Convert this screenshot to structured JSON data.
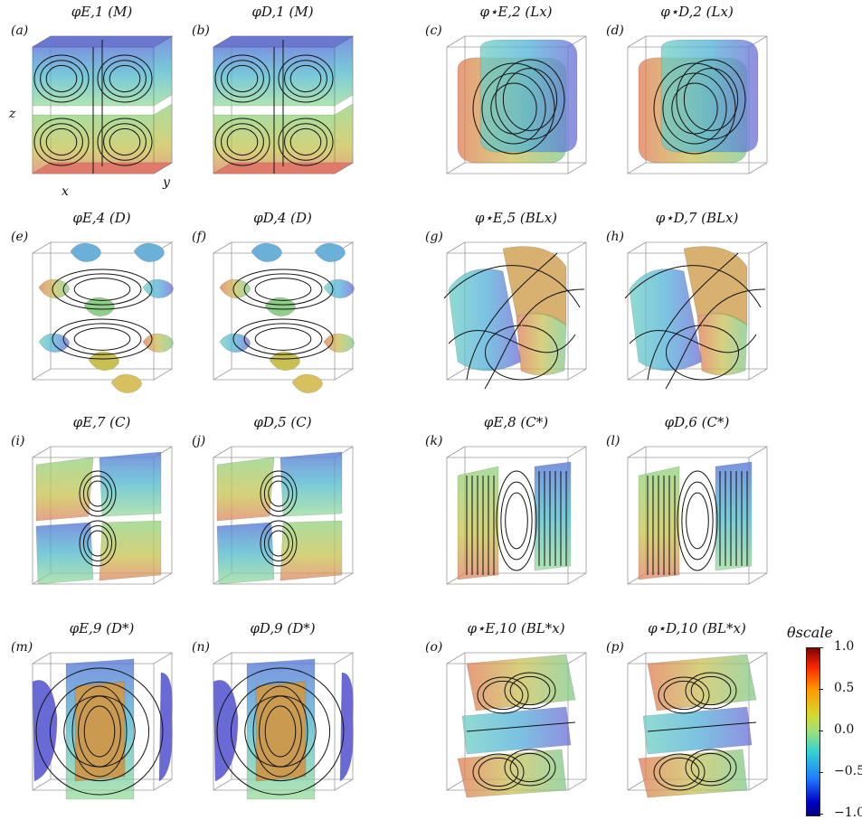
{
  "panels": [
    {
      "label": "(a)",
      "title": "φE,1 (M)",
      "style": "layers"
    },
    {
      "label": "(b)",
      "title": "φD,1 (M)",
      "style": "layers"
    },
    {
      "label": "(c)",
      "title": "φ⋆E,2 (Lx)",
      "style": "slab"
    },
    {
      "label": "(d)",
      "title": "φ⋆D,2 (Lx)",
      "style": "slab"
    },
    {
      "label": "(e)",
      "title": "φE,4 (D)",
      "style": "blobs"
    },
    {
      "label": "(f)",
      "title": "φD,4 (D)",
      "style": "blobs"
    },
    {
      "label": "(g)",
      "title": "φ⋆E,5 (BLx)",
      "style": "twisted"
    },
    {
      "label": "(h)",
      "title": "φ⋆D,7 (BLx)",
      "style": "twisted"
    },
    {
      "label": "(i)",
      "title": "φE,7 (C)",
      "style": "quad"
    },
    {
      "label": "(j)",
      "title": "φD,5 (C)",
      "style": "quad"
    },
    {
      "label": "(k)",
      "title": "φE,8 (C*)",
      "style": "walls"
    },
    {
      "label": "(l)",
      "title": "φD,6 (C*)",
      "style": "walls"
    },
    {
      "label": "(m)",
      "title": "φE,9 (D*)",
      "style": "column"
    },
    {
      "label": "(n)",
      "title": "φD,9 (D*)",
      "style": "column"
    },
    {
      "label": "(o)",
      "title": "φ⋆E,10 (BL*x)",
      "style": "rolls"
    },
    {
      "label": "(p)",
      "title": "φ⋆D,10 (BL*x)",
      "style": "rolls"
    }
  ],
  "axes": {
    "x": "x",
    "y": "y",
    "z": "z"
  },
  "colorbar": {
    "title": "θscale",
    "ticks": [
      "1.0",
      "0.5",
      "0.0",
      "−0.5",
      "−1.0"
    ],
    "colors": [
      "#7f0000",
      "#ff9a00",
      "#9ae07a",
      "#1f7bff",
      "#00007f"
    ]
  }
}
